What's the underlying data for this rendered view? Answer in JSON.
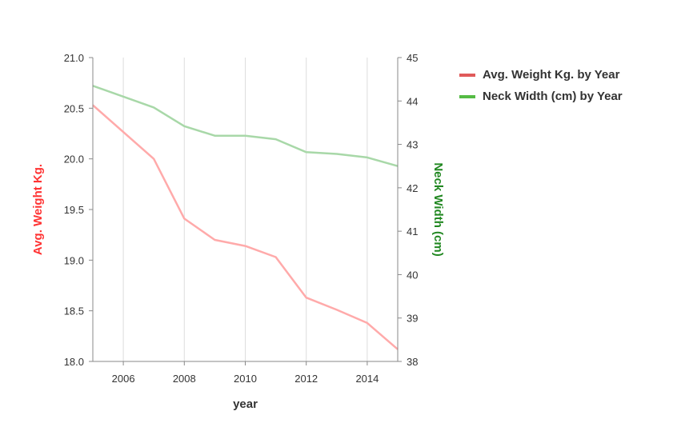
{
  "chart_data": {
    "type": "line",
    "title": "",
    "x": [
      2005,
      2007,
      2008,
      2009,
      2010,
      2011,
      2012,
      2013,
      2014,
      2015
    ],
    "xlabel": "year",
    "xlim": [
      2005,
      2015
    ],
    "xticks": [
      "2006",
      "2008",
      "2010",
      "2012",
      "2014"
    ],
    "xtick_values": [
      2006,
      2008,
      2010,
      2012,
      2014
    ],
    "grid": "vertical",
    "series": [
      {
        "name": "Avg. Weight Kg. by Year",
        "axis": "left",
        "color": "#ffaaaa",
        "legend_color": "#e05a5a",
        "values": [
          20.53,
          20.0,
          19.41,
          19.2,
          19.14,
          19.03,
          18.63,
          18.51,
          18.38,
          18.12
        ]
      },
      {
        "name": "Neck Width (cm) by Year",
        "axis": "right",
        "color": "#a8d8a8",
        "legend_color": "#55bb44",
        "values": [
          44.35,
          43.85,
          43.42,
          43.2,
          43.2,
          43.12,
          42.82,
          42.78,
          42.7,
          42.5
        ]
      }
    ],
    "y_left": {
      "label": "Avg. Weight Kg.",
      "label_color": "#ff3333",
      "ylim": [
        18.0,
        21.0
      ],
      "ticks": [
        "18.0",
        "18.5",
        "19.0",
        "19.5",
        "20.0",
        "20.5",
        "21.0"
      ],
      "tick_values": [
        18.0,
        18.5,
        19.0,
        19.5,
        20.0,
        20.5,
        21.0
      ]
    },
    "y_right": {
      "label": "Neck Width (cm)",
      "label_color": "#228822",
      "ylim": [
        38,
        45
      ],
      "ticks": [
        "38",
        "39",
        "40",
        "41",
        "42",
        "43",
        "44",
        "45"
      ],
      "tick_values": [
        38,
        39,
        40,
        41,
        42,
        43,
        44,
        45
      ]
    },
    "legend_position": "right"
  }
}
